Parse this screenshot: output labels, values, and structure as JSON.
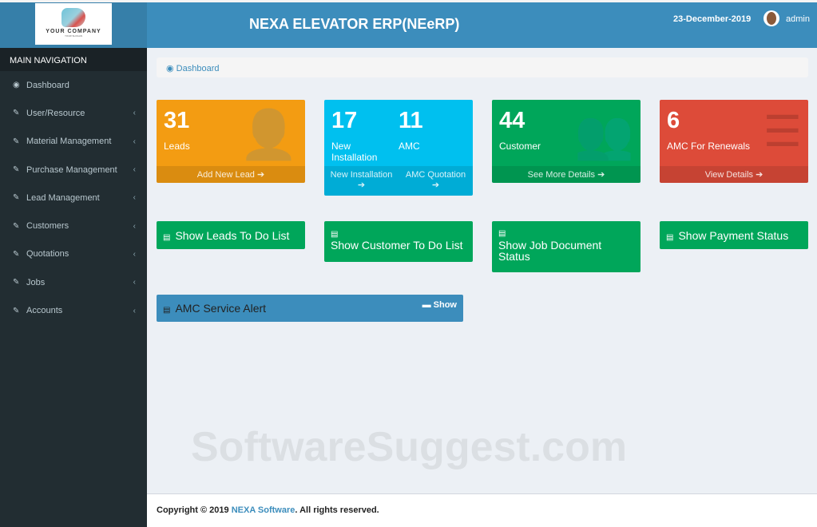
{
  "logo": {
    "company": "YOUR COMPANY",
    "slogan": "YOUR SLOGAN"
  },
  "header": {
    "title": "NEXA ELEVATOR ERP(NEeRP)",
    "date": "23-December-2019",
    "user": "admin"
  },
  "sidebar": {
    "heading": "MAIN NAVIGATION",
    "items": [
      {
        "label": "Dashboard",
        "icon": "dashboard-icon",
        "expandable": false
      },
      {
        "label": "User/Resource",
        "icon": "edit-icon",
        "expandable": true
      },
      {
        "label": "Material Management",
        "icon": "edit-icon",
        "expandable": true
      },
      {
        "label": "Purchase Management",
        "icon": "edit-icon",
        "expandable": true
      },
      {
        "label": "Lead Management",
        "icon": "edit-icon",
        "expandable": true
      },
      {
        "label": "Customers",
        "icon": "edit-icon",
        "expandable": true
      },
      {
        "label": "Quotations",
        "icon": "edit-icon",
        "expandable": true
      },
      {
        "label": "Jobs",
        "icon": "edit-icon",
        "expandable": true
      },
      {
        "label": "Accounts",
        "icon": "edit-icon",
        "expandable": true
      }
    ]
  },
  "breadcrumb": "Dashboard",
  "boxes": {
    "leads": {
      "num": "31",
      "cap": "Leads",
      "foot": "Add New Lead",
      "color": "#f39c12"
    },
    "install": {
      "num1": "17",
      "cap1": "New Installation",
      "num2": "11",
      "cap2": "AMC",
      "foot1": "New Installation",
      "foot2": "AMC Quotation",
      "color": "#00c0ef"
    },
    "customer": {
      "num": "44",
      "cap": "Customer",
      "foot": "See More Details",
      "color": "#00a65a"
    },
    "renew": {
      "num": "6",
      "cap": "AMC For Renewals",
      "foot": "View Details",
      "color": "#dd4b39"
    }
  },
  "buttons": [
    "Show Leads To Do List",
    "Show Customer To Do List",
    "Show Job Document Status",
    "Show Payment Status"
  ],
  "alert": {
    "title": "AMC Service Alert",
    "show": "Show"
  },
  "watermark": "SoftwareSuggest.com",
  "footer": {
    "prefix": "Copyright © 2019",
    "brand": "NEXA Software",
    "suffix": ". All rights reserved."
  }
}
